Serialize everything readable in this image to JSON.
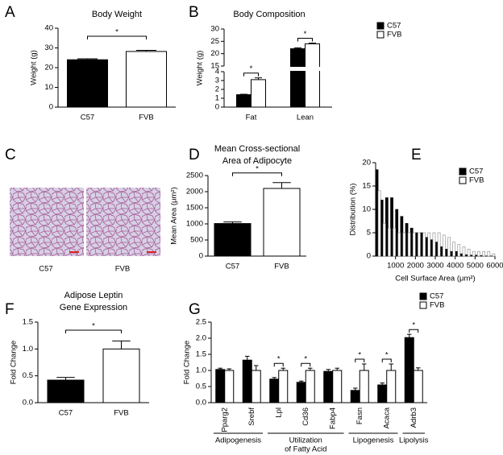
{
  "chart_data": [
    {
      "type": "bar",
      "panel": "A",
      "title": "Body Weight",
      "ylabel": "Weight (g)",
      "categories": [
        "C57",
        "FVB"
      ],
      "values": [
        24,
        28.2
      ],
      "errors": [
        0.5,
        0.6
      ],
      "colors": [
        "#000000",
        "#ffffff"
      ],
      "ylim": [
        0,
        40
      ],
      "yticks": [
        0,
        10,
        20,
        30,
        40
      ],
      "annotations": [
        "*"
      ]
    },
    {
      "type": "bar",
      "panel": "B",
      "title": "Body Composition",
      "ylabel": "Weight (g)",
      "categories": [
        "Fat",
        "Lean"
      ],
      "series": [
        {
          "name": "C57",
          "color": "#000000",
          "values": [
            1.4,
            22
          ],
          "errors": [
            0.05,
            0.4
          ]
        },
        {
          "name": "FVB",
          "color": "#ffffff",
          "values": [
            3.1,
            24
          ],
          "errors": [
            0.2,
            0.3
          ]
        }
      ],
      "ylim": [
        0,
        30
      ],
      "axis_break": [
        4,
        15
      ],
      "yticks": [
        0,
        1,
        2,
        3,
        4,
        15,
        20,
        25,
        30
      ],
      "annotations": [
        "*",
        "*"
      ]
    },
    {
      "type": "image",
      "panel": "C",
      "labels": [
        "C57",
        "FVB"
      ]
    },
    {
      "type": "bar",
      "panel": "D",
      "title": [
        "Mean Cross-sectional",
        "Area of Adipocyte"
      ],
      "ylabel": "Mean Area (μm²)",
      "categories": [
        "C57",
        "FVB"
      ],
      "values": [
        1010,
        2100
      ],
      "errors": [
        50,
        180
      ],
      "colors": [
        "#000000",
        "#ffffff"
      ],
      "ylim": [
        0,
        2500
      ],
      "yticks": [
        0,
        500,
        1000,
        1500,
        2000,
        2500
      ],
      "annotations": [
        "*"
      ]
    },
    {
      "type": "histogram",
      "panel": "E",
      "ylabel": "Distribution (%)",
      "xlabel": "Cell Surface Area (μm²)",
      "bins": [
        0,
        250,
        500,
        750,
        1000,
        1250,
        1500,
        1750,
        2000,
        2250,
        2500,
        2750,
        3000,
        3250,
        3500,
        3750,
        4000,
        4250,
        4500,
        4750,
        5000,
        5250,
        5500,
        5750,
        6000
      ],
      "series": [
        {
          "name": "C57",
          "color": "#000000",
          "values": [
            18.5,
            12,
            12.5,
            12.5,
            10,
            8.5,
            7,
            6,
            5,
            5,
            4,
            3.5,
            3,
            2,
            1.5,
            1,
            1,
            0.5,
            0.3,
            0.2,
            0.2,
            0.1,
            0,
            0
          ]
        },
        {
          "name": "FVB",
          "color": "#ffffff",
          "values": [
            14,
            7,
            6,
            6,
            5,
            5,
            5,
            5,
            5,
            5,
            5,
            5,
            5,
            4.5,
            4,
            3,
            2.5,
            2,
            1.5,
            1,
            1,
            1,
            1,
            0.5
          ]
        }
      ],
      "xlim": [
        0,
        6000
      ],
      "xticks": [
        1000,
        2000,
        3000,
        4000,
        5000,
        6000
      ],
      "ylim": [
        0,
        20
      ],
      "yticks": [
        0,
        5,
        10,
        15,
        20
      ]
    },
    {
      "type": "bar",
      "panel": "F",
      "title": [
        "Adipose Leptin",
        "Gene Expression"
      ],
      "ylabel": "Fold Change",
      "categories": [
        "C57",
        "FVB"
      ],
      "values": [
        0.42,
        1.0
      ],
      "errors": [
        0.05,
        0.15
      ],
      "colors": [
        "#000000",
        "#ffffff"
      ],
      "ylim": [
        0,
        1.5
      ],
      "yticks": [
        {
          "value": 0,
          "label": "0.0"
        },
        0.5,
        {
          "value": 1,
          "label": "1.0"
        },
        1.5
      ],
      "annotations": [
        "*"
      ]
    },
    {
      "type": "bar",
      "panel": "G",
      "ylabel": "Fold Change",
      "categories": [
        "Pparg2",
        "Srebf",
        "Lpl",
        "Cd36",
        "Fabp4",
        "Fasn",
        "Acaca",
        "Adrb3"
      ],
      "series": [
        {
          "name": "C57",
          "color": "#000000",
          "values": [
            1.03,
            1.32,
            0.73,
            0.63,
            0.97,
            0.38,
            0.55,
            2.02
          ],
          "errors": [
            0.04,
            0.12,
            0.05,
            0.04,
            0.06,
            0.07,
            0.06,
            0.1
          ]
        },
        {
          "name": "FVB",
          "color": "#ffffff",
          "values": [
            1.0,
            1.0,
            1.0,
            1.0,
            1.0,
            1.0,
            1.0,
            1.0
          ],
          "errors": [
            0.05,
            0.15,
            0.07,
            0.07,
            0.07,
            0.2,
            0.2,
            0.08
          ]
        }
      ],
      "ylim": [
        0,
        2.5
      ],
      "yticks": [
        {
          "value": 0,
          "label": "0.0"
        },
        0.5,
        {
          "value": 1,
          "label": "1.0"
        },
        1.5,
        {
          "value": 2,
          "label": "2.0"
        },
        2.5
      ],
      "groups": [
        [
          "Adipogenesis"
        ],
        [
          "Utilization",
          "of Fatty Acid"
        ],
        [
          "Lipogenesis"
        ],
        [
          "Lipolysis"
        ]
      ],
      "annotations": [
        "*",
        "*",
        "*",
        "*",
        "*"
      ]
    }
  ]
}
